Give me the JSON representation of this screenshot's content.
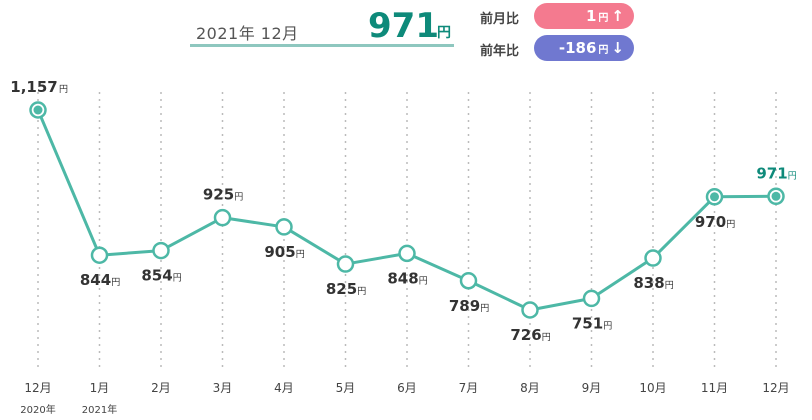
{
  "header": {
    "period": "2021年 12月",
    "current_value": "971",
    "current_unit": "円",
    "mom_label": "前月比",
    "mom_value": "1",
    "mom_unit": "円",
    "mom_arrow": "↑",
    "yoy_label": "前年比",
    "yoy_value": "-186",
    "yoy_unit": "円",
    "yoy_arrow": "↓",
    "colors": {
      "up": "#f47a8f",
      "down": "#7078d0",
      "accent": "#0e8a7a",
      "line": "#4db8a6"
    }
  },
  "chart_data": {
    "type": "line",
    "unit": "円",
    "categories": [
      "12月",
      "1月",
      "2月",
      "3月",
      "4月",
      "5月",
      "6月",
      "7月",
      "8月",
      "9月",
      "10月",
      "11月",
      "12月"
    ],
    "year_labels": [
      "2020年",
      "2021年",
      "",
      "",
      "",
      "",
      "",
      "",
      "",
      "",
      "",
      "",
      ""
    ],
    "values": [
      1157,
      844,
      854,
      925,
      905,
      825,
      848,
      789,
      726,
      751,
      838,
      970,
      971
    ],
    "value_labels": [
      "1,157",
      "844",
      "854",
      "925",
      "905",
      "825",
      "848",
      "789",
      "726",
      "751",
      "838",
      "970",
      "971"
    ],
    "filled_points": [
      0,
      11,
      12
    ],
    "highlight_last": true,
    "grid": "vertical-dotted"
  }
}
